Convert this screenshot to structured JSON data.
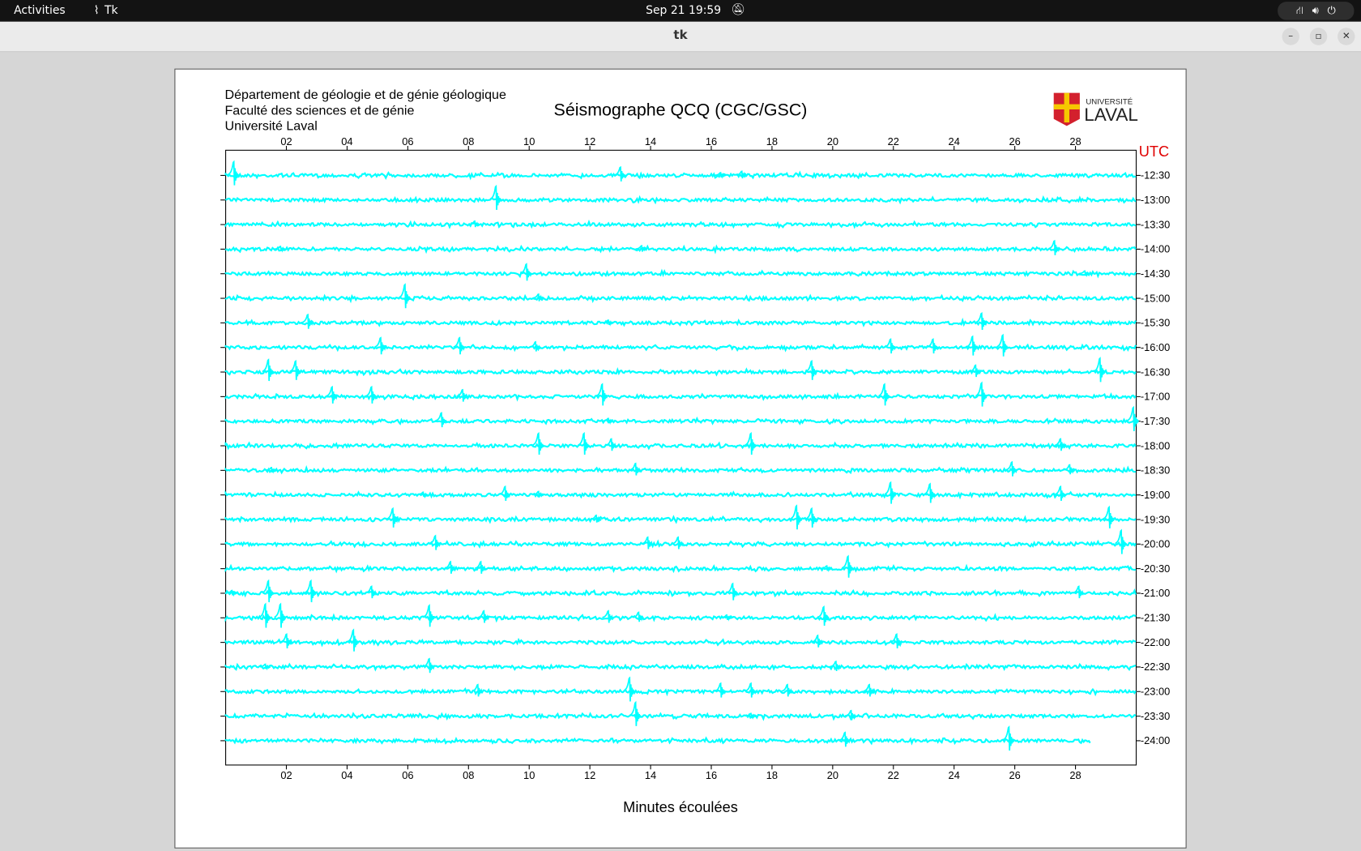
{
  "topbar": {
    "activities": "Activities",
    "app_name": "Tk",
    "clock": "Sep 21  19:59"
  },
  "window": {
    "title": "tk",
    "minimize": "–",
    "maximize": "▫",
    "close": "✕"
  },
  "header": {
    "line1": "Département de géologie et de génie géologique",
    "line2": "Faculté des sciences et de génie",
    "line3": "Université Laval",
    "logo_text_top": "UNIVERSITÉ",
    "logo_text_bottom": "LAVAL"
  },
  "chart_data": {
    "type": "line",
    "title": "Séismographe QCQ (CGC/GSC)",
    "xlabel": "Minutes écoulées",
    "ylabel": "UTC",
    "xlim": [
      0,
      30
    ],
    "xticks": [
      "02",
      "04",
      "06",
      "08",
      "10",
      "12",
      "14",
      "16",
      "18",
      "20",
      "22",
      "24",
      "26",
      "28"
    ],
    "trace_color": "#00ffff",
    "rows": [
      {
        "label": "12:30",
        "events": [
          [
            0.26,
            1.0
          ],
          [
            13.0,
            0.6
          ],
          [
            17.0,
            0.3
          ],
          [
            16.3,
            0.2
          ]
        ]
      },
      {
        "label": "13:00",
        "events": [
          [
            8.9,
            1.0
          ]
        ]
      },
      {
        "label": "13:30",
        "events": [
          [
            8.2,
            0.25
          ]
        ]
      },
      {
        "label": "14:00",
        "events": [
          [
            27.3,
            0.6
          ],
          [
            1.8,
            0.2
          ],
          [
            13.7,
            0.25
          ]
        ]
      },
      {
        "label": "14:30",
        "events": [
          [
            9.9,
            0.7
          ],
          [
            28.3,
            0.2
          ]
        ]
      },
      {
        "label": "15:00",
        "events": [
          [
            5.9,
            1.0
          ],
          [
            10.3,
            0.3
          ]
        ]
      },
      {
        "label": "15:30",
        "events": [
          [
            2.7,
            0.6
          ],
          [
            24.9,
            0.7
          ],
          [
            12.6,
            0.2
          ]
        ]
      },
      {
        "label": "16:00",
        "events": [
          [
            5.1,
            0.7
          ],
          [
            7.7,
            0.7
          ],
          [
            10.2,
            0.4
          ],
          [
            21.9,
            0.6
          ],
          [
            23.3,
            0.6
          ],
          [
            24.6,
            0.8
          ],
          [
            25.6,
            0.9
          ]
        ]
      },
      {
        "label": "16:30",
        "events": [
          [
            1.4,
            0.9
          ],
          [
            2.3,
            0.8
          ],
          [
            19.3,
            0.8
          ],
          [
            24.7,
            0.5
          ],
          [
            28.8,
            1.0
          ]
        ]
      },
      {
        "label": "17:00",
        "events": [
          [
            3.5,
            0.7
          ],
          [
            4.8,
            0.7
          ],
          [
            7.8,
            0.5
          ],
          [
            12.4,
            0.9
          ],
          [
            21.7,
            0.9
          ],
          [
            24.9,
            1.0
          ]
        ]
      },
      {
        "label": "17:30",
        "events": [
          [
            7.1,
            0.6
          ],
          [
            12.6,
            0.2
          ],
          [
            29.9,
            1.0
          ]
        ]
      },
      {
        "label": "18:00",
        "events": [
          [
            10.3,
            0.9
          ],
          [
            11.8,
            0.9
          ],
          [
            12.7,
            0.5
          ],
          [
            17.3,
            0.9
          ],
          [
            27.5,
            0.5
          ]
        ]
      },
      {
        "label": "18:30",
        "events": [
          [
            13.5,
            0.5
          ],
          [
            25.9,
            0.6
          ],
          [
            27.8,
            0.4
          ],
          [
            1.5,
            0.2
          ]
        ]
      },
      {
        "label": "19:00",
        "events": [
          [
            9.2,
            0.6
          ],
          [
            21.9,
            0.9
          ],
          [
            23.2,
            0.8
          ],
          [
            27.5,
            0.6
          ],
          [
            6.5,
            0.2
          ],
          [
            10.3,
            0.25
          ]
        ]
      },
      {
        "label": "19:30",
        "events": [
          [
            5.5,
            0.8
          ],
          [
            12.2,
            0.3
          ],
          [
            18.8,
            1.0
          ],
          [
            19.3,
            0.8
          ],
          [
            29.1,
            0.9
          ]
        ]
      },
      {
        "label": "20:00",
        "events": [
          [
            6.9,
            0.6
          ],
          [
            13.9,
            0.5
          ],
          [
            14.9,
            0.5
          ],
          [
            29.5,
            1.0
          ]
        ]
      },
      {
        "label": "20:30",
        "events": [
          [
            7.4,
            0.5
          ],
          [
            8.4,
            0.5
          ],
          [
            20.5,
            0.9
          ],
          [
            19.8,
            0.2
          ]
        ]
      },
      {
        "label": "21:00",
        "events": [
          [
            1.4,
            0.9
          ],
          [
            2.8,
            0.9
          ],
          [
            4.8,
            0.5
          ],
          [
            16.7,
            0.7
          ],
          [
            28.1,
            0.5
          ],
          [
            0.2,
            0.2
          ]
        ]
      },
      {
        "label": "21:30",
        "events": [
          [
            1.3,
            1.0
          ],
          [
            1.8,
            1.0
          ],
          [
            6.7,
            0.9
          ],
          [
            8.5,
            0.5
          ],
          [
            12.6,
            0.5
          ],
          [
            13.6,
            0.4
          ],
          [
            19.7,
            0.8
          ],
          [
            16.5,
            0.2
          ]
        ]
      },
      {
        "label": "22:00",
        "events": [
          [
            2.0,
            0.6
          ],
          [
            4.2,
            0.9
          ],
          [
            19.5,
            0.5
          ],
          [
            22.1,
            0.6
          ]
        ]
      },
      {
        "label": "22:30",
        "events": [
          [
            6.7,
            0.6
          ],
          [
            20.1,
            0.4
          ],
          [
            1.3,
            0.2
          ]
        ]
      },
      {
        "label": "23:00",
        "events": [
          [
            8.3,
            0.5
          ],
          [
            13.3,
            1.0
          ],
          [
            16.3,
            0.6
          ],
          [
            17.3,
            0.6
          ],
          [
            18.5,
            0.5
          ],
          [
            21.2,
            0.5
          ]
        ]
      },
      {
        "label": "23:30",
        "events": [
          [
            13.5,
            1.0
          ],
          [
            20.6,
            0.4
          ],
          [
            17.3,
            0.2
          ]
        ]
      },
      {
        "label": "24:00",
        "events": [
          [
            20.4,
            0.6
          ],
          [
            25.8,
            1.0
          ]
        ],
        "end": 28.5
      }
    ]
  }
}
